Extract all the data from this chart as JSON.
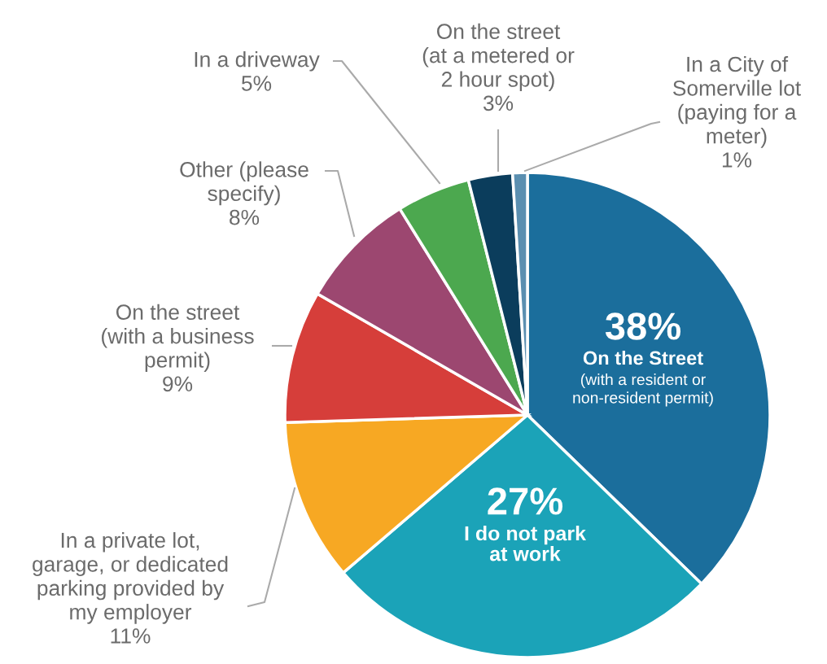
{
  "chart_data": {
    "type": "pie",
    "categories": [
      "On the Street\n(with a resident or\nnon-resident permit)",
      "I do not park\nat work",
      "In a private lot,\ngarage, or dedicated\nparking provided by\nmy employer",
      "On the street\n(with a business\npermit)",
      "Other (please\nspecify)",
      "In a driveway",
      "On the street\n(at a metered or\n2 hour spot)",
      "In a City of\nSomerville lot\n(paying for a\nmeter)"
    ],
    "values": [
      38,
      27,
      11,
      9,
      8,
      5,
      3,
      1
    ],
    "colors": [
      "#1b6e9c",
      "#1ba3b8",
      "#f7a823",
      "#d63e3a",
      "#9c4770",
      "#4ca84f",
      "#0b3d5c",
      "#5b8fb0"
    ],
    "value_labels": [
      "38%",
      "27%",
      "11%",
      "9%",
      "8%",
      "5%",
      "3%",
      "1%"
    ],
    "data_labels": true,
    "legend": false
  }
}
